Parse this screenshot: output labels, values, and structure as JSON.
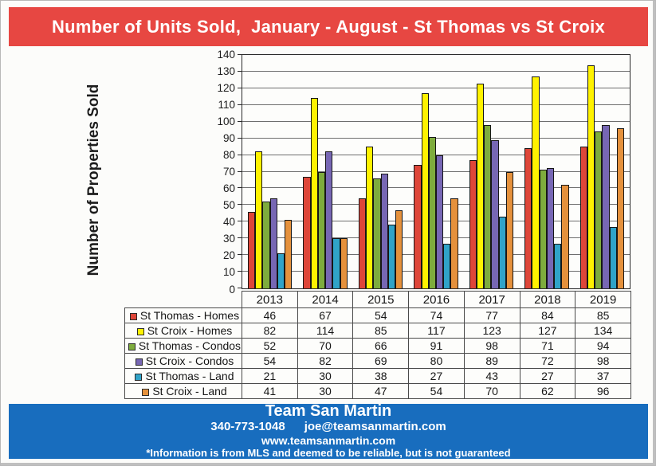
{
  "title": "Number of Units Sold,  January - August - St Thomas vs St Croix",
  "chart_data": {
    "type": "bar",
    "title": "Number of Units Sold, January - August - St Thomas vs St Croix",
    "xlabel": "",
    "ylabel": "Number of Properties Sold",
    "ylim": [
      0,
      140
    ],
    "ytick_step": 10,
    "grid": true,
    "legend_position": "table-left",
    "categories": [
      "2013",
      "2014",
      "2015",
      "2016",
      "2017",
      "2018",
      "2019"
    ],
    "series": [
      {
        "name": "St Thomas - Homes",
        "color": "#de4639",
        "values": [
          46,
          67,
          54,
          74,
          77,
          84,
          85
        ]
      },
      {
        "name": "St Croix - Homes",
        "color": "#fff200",
        "values": [
          82,
          114,
          85,
          117,
          123,
          127,
          134
        ]
      },
      {
        "name": "St Thomas - Condos",
        "color": "#7eac3d",
        "values": [
          52,
          70,
          66,
          91,
          98,
          71,
          94
        ]
      },
      {
        "name": "St Croix - Condos",
        "color": "#7767b4",
        "values": [
          54,
          82,
          69,
          80,
          89,
          72,
          98
        ]
      },
      {
        "name": "St Thomas - Land",
        "color": "#30a3c8",
        "values": [
          21,
          30,
          38,
          27,
          43,
          27,
          37
        ]
      },
      {
        "name": "St Croix - Land",
        "color": "#e5913c",
        "values": [
          41,
          30,
          47,
          54,
          70,
          62,
          96
        ]
      }
    ]
  },
  "footer": {
    "team": "Team San Martin",
    "phone": "340-773-1048",
    "email": "joe@teamsanmartin.com",
    "website": "www.teamsanmartin.com",
    "disclaimer": "*Information is from MLS and deemed to be reliable, but is not guaranteed"
  },
  "colors": {
    "title_banner": "#e74742",
    "footer_banner": "#186dbe"
  }
}
